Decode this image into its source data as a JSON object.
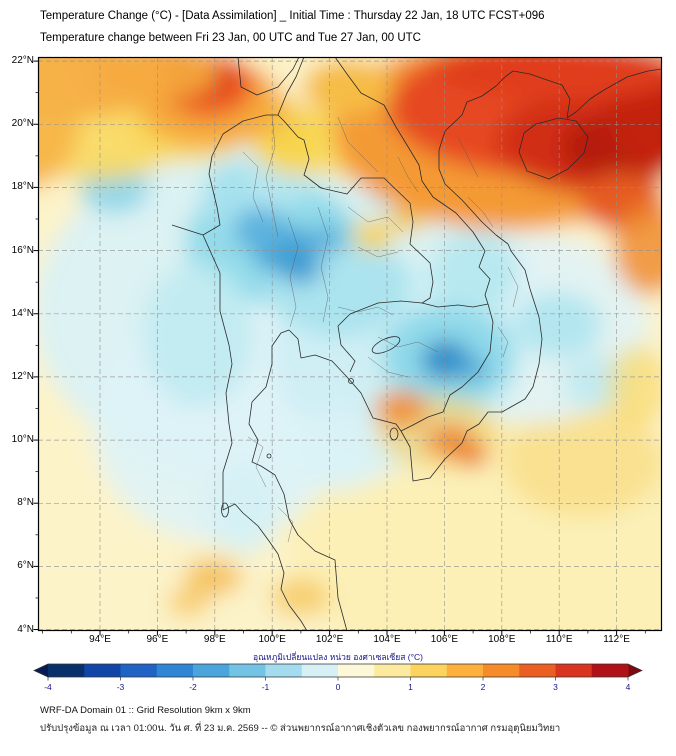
{
  "header": {
    "title_line1": "Temperature Change (°C) - [Data Assimilation] _ Initial Time : Thursday 22 Jan, 18 UTC FCST+096",
    "title_line2": "Temperature change between Fri 23 Jan, 00 UTC and Tue 27 Jan, 00 UTC"
  },
  "map": {
    "lat_labels": [
      "22°N",
      "20°N",
      "18°N",
      "16°N",
      "14°N",
      "12°N",
      "10°N",
      "8°N",
      "6°N",
      "4°N"
    ],
    "lon_labels": [
      "94°E",
      "96°E",
      "98°E",
      "100°E",
      "102°E",
      "104°E",
      "106°E",
      "108°E",
      "110°E",
      "112°E"
    ]
  },
  "colorbar": {
    "label": "อุณหภูมิเปลี่ยนแปลง หน่วย องศาเซลเซียส (°C)",
    "ticks": [
      "-4",
      "-3",
      "-2",
      "-1",
      "0",
      "1",
      "2",
      "3",
      "4"
    ],
    "colors": [
      "#08306b",
      "#1245a8",
      "#1f63c4",
      "#2f86d4",
      "#4aa5dc",
      "#72c3e4",
      "#a3dcee",
      "#d6f0f6",
      "#fdf8d8",
      "#fcea9e",
      "#fdd35f",
      "#fdb13c",
      "#f68b2a",
      "#ec5f22",
      "#d93420",
      "#b01217"
    ],
    "left_arrow_color": "#061c54",
    "right_arrow_color": "#7c0a10"
  },
  "footer": {
    "line1": "WRF-DA Domain 01 :: Grid Resolution 9km x 9km",
    "line2": "ปรับปรุงข้อมูล ณ เวลา 01:00น. วัน ศ. ที่ 23 ม.ค. 2569 -- © ส่วนพยากรณ์อากาศเชิงตัวเลข กองพยากรณ์อากาศ กรมอุตุนิยมวิทยา"
  }
}
